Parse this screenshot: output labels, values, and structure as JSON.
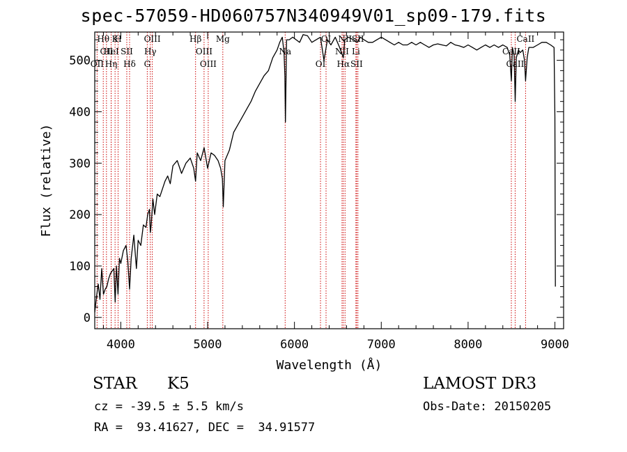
{
  "chart_data": {
    "type": "line",
    "title": "spec-57059-HD060757N340949V01_sp09-179.fits",
    "xlabel": "Wavelength (Å)",
    "ylabel": "Flux (relative)",
    "xlim": [
      3700,
      9100
    ],
    "ylim": [
      -22,
      555
    ],
    "xticks": [
      4000,
      5000,
      6000,
      7000,
      8000,
      9000
    ],
    "yticks": [
      0,
      100,
      200,
      300,
      400,
      500
    ],
    "grid": false,
    "series": [
      {
        "name": "flux",
        "x": [
          3700,
          3720,
          3740,
          3760,
          3780,
          3800,
          3820,
          3840,
          3860,
          3880,
          3900,
          3920,
          3935,
          3950,
          3968,
          3985,
          4000,
          4030,
          4060,
          4080,
          4101,
          4120,
          4150,
          4180,
          4200,
          4230,
          4260,
          4290,
          4310,
          4330,
          4340,
          4350,
          4370,
          4390,
          4420,
          4450,
          4480,
          4510,
          4540,
          4570,
          4600,
          4650,
          4700,
          4750,
          4800,
          4840,
          4861,
          4880,
          4920,
          4960,
          5000,
          5040,
          5080,
          5120,
          5150,
          5170,
          5180,
          5200,
          5250,
          5300,
          5350,
          5400,
          5450,
          5500,
          5550,
          5600,
          5650,
          5700,
          5750,
          5800,
          5830,
          5860,
          5880,
          5890,
          5896,
          5910,
          5940,
          5980,
          6020,
          6060,
          6100,
          6150,
          6200,
          6250,
          6300,
          6340,
          6380,
          6420,
          6470,
          6520,
          6563,
          6580,
          6620,
          6680,
          6720,
          6760,
          6800,
          6850,
          6900,
          6950,
          7000,
          7050,
          7100,
          7150,
          7200,
          7250,
          7300,
          7350,
          7400,
          7450,
          7500,
          7550,
          7600,
          7650,
          7700,
          7750,
          7800,
          7850,
          7900,
          7950,
          8000,
          8050,
          8100,
          8150,
          8200,
          8250,
          8300,
          8350,
          8400,
          8450,
          8480,
          8498,
          8510,
          8530,
          8542,
          8555,
          8580,
          8600,
          8630,
          8650,
          8662,
          8680,
          8700,
          8750,
          8800,
          8850,
          8900,
          8950,
          8990,
          9000,
          9005
        ],
        "values": [
          10,
          40,
          65,
          35,
          95,
          45,
          55,
          60,
          75,
          85,
          90,
          95,
          30,
          100,
          45,
          115,
          105,
          130,
          140,
          110,
          55,
          115,
          160,
          95,
          150,
          140,
          180,
          175,
          200,
          210,
          165,
          180,
          230,
          200,
          240,
          235,
          250,
          265,
          275,
          260,
          295,
          305,
          280,
          300,
          310,
          290,
          265,
          320,
          305,
          330,
          290,
          320,
          315,
          305,
          290,
          270,
          215,
          305,
          325,
          360,
          375,
          390,
          405,
          420,
          440,
          455,
          470,
          480,
          505,
          520,
          535,
          545,
          515,
          470,
          380,
          540,
          540,
          545,
          540,
          535,
          550,
          548,
          535,
          540,
          545,
          500,
          540,
          530,
          545,
          525,
          505,
          540,
          545,
          540,
          535,
          545,
          540,
          535,
          535,
          540,
          545,
          540,
          535,
          530,
          535,
          530,
          530,
          535,
          530,
          535,
          530,
          525,
          530,
          532,
          530,
          528,
          535,
          530,
          528,
          525,
          530,
          525,
          520,
          525,
          530,
          525,
          530,
          525,
          530,
          525,
          510,
          460,
          525,
          510,
          420,
          505,
          520,
          515,
          520,
          500,
          460,
          505,
          525,
          525,
          530,
          535,
          535,
          530,
          525,
          390,
          60
        ]
      }
    ],
    "lines": [
      {
        "label": "Hθ",
        "wl": 3798
      },
      {
        "label": "CII",
        "wl": 3835
      },
      {
        "label": "OII",
        "wl": 3727
      },
      {
        "label": "K",
        "wl": 3934
      },
      {
        "label": "HeI",
        "wl": 3889
      },
      {
        "label": "Hη",
        "wl": 3889
      },
      {
        "label": "H",
        "wl": 3969
      },
      {
        "label": "SII",
        "wl": 4069
      },
      {
        "label": "Hδ",
        "wl": 4101
      },
      {
        "label": "OIII",
        "wl": 4363
      },
      {
        "label": "Hγ",
        "wl": 4340
      },
      {
        "label": "G",
        "wl": 4305
      },
      {
        "label": "Hβ",
        "wl": 4861
      },
      {
        "label": "OIII",
        "wl": 4959
      },
      {
        "label": "OIII",
        "wl": 5007
      },
      {
        "label": "Mg",
        "wl": 5175
      },
      {
        "label": "Na",
        "wl": 5893
      },
      {
        "label": "OI",
        "wl": 6300
      },
      {
        "label": "OI",
        "wl": 6364
      },
      {
        "label": "NII",
        "wl": 6548
      },
      {
        "label": "Hα",
        "wl": 6563
      },
      {
        "label": "NII",
        "wl": 6583
      },
      {
        "label": "Li",
        "wl": 6708
      },
      {
        "label": "SII",
        "wl": 6716
      },
      {
        "label": "SII",
        "wl": 6731
      },
      {
        "label": "CaII",
        "wl": 8498
      },
      {
        "label": "CaII",
        "wl": 8542
      },
      {
        "label": "CaII",
        "wl": 8662
      }
    ]
  },
  "info": {
    "class": "STAR",
    "subclass": "K5",
    "survey": "LAMOST DR3",
    "cz": "cz = -39.5 ± 5.5 km/s",
    "obsdate": "Obs-Date: 20150205",
    "radec": "RA =  93.41627, DEC =  34.91577"
  },
  "colors": {
    "axis": "#000000",
    "spectrum": "#000000",
    "line_marker": "#cc0000",
    "background": "#ffffff"
  }
}
